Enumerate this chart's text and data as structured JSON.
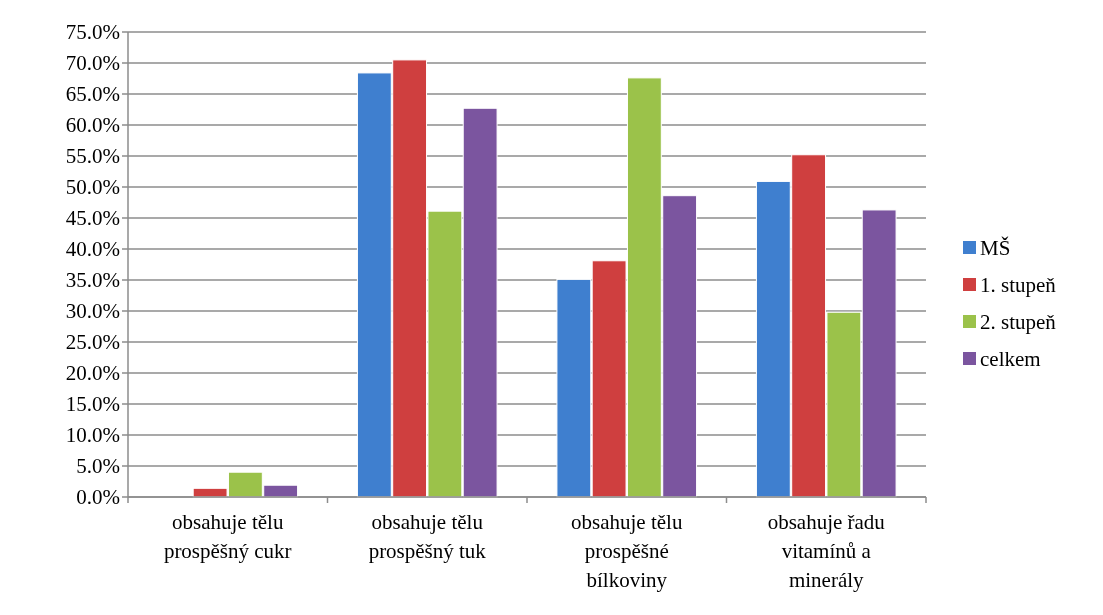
{
  "chart_data": {
    "type": "bar",
    "categories": [
      "obsahuje tělu prospěšný cukr",
      "obsahuje tělu prospěšný tuk",
      "obsahuje tělu prospěšné bílkoviny",
      "obsahuje řadu vitamínů a minerály"
    ],
    "series": [
      {
        "name": "MŠ",
        "color": "#3f7fcf",
        "values": [
          0,
          68.4,
          35.1,
          50.9
        ]
      },
      {
        "name": "1. stupeň",
        "color": "#cf3f3f",
        "values": [
          1.4,
          70.5,
          38.1,
          55.2
        ]
      },
      {
        "name": "2. stupeň",
        "color": "#9bc24a",
        "values": [
          4.0,
          46.1,
          67.6,
          29.8
        ]
      },
      {
        "name": "celkem",
        "color": "#7b559f",
        "values": [
          1.9,
          62.7,
          48.6,
          46.3
        ]
      }
    ],
    "ylim": [
      0,
      75
    ],
    "yticks": [
      {
        "value": 0,
        "label": "0.0%"
      },
      {
        "value": 5,
        "label": "5.0%"
      },
      {
        "value": 10,
        "label": "10.0%"
      },
      {
        "value": 15,
        "label": "15.0%"
      },
      {
        "value": 20,
        "label": "20.0%"
      },
      {
        "value": 25,
        "label": "25.0%"
      },
      {
        "value": 30,
        "label": "30.0%"
      },
      {
        "value": 35,
        "label": "35.0%"
      },
      {
        "value": 40,
        "label": "40.0%"
      },
      {
        "value": 45,
        "label": "45.0%"
      },
      {
        "value": 50,
        "label": "50.0%"
      },
      {
        "value": 55,
        "label": "55.0%"
      },
      {
        "value": 60,
        "label": "60.0%"
      },
      {
        "value": 65,
        "label": "65.0%"
      },
      {
        "value": 70,
        "label": "70.0%"
      },
      {
        "value": 75,
        "label": "75.0%"
      }
    ],
    "grid": "y",
    "legend": "right"
  }
}
